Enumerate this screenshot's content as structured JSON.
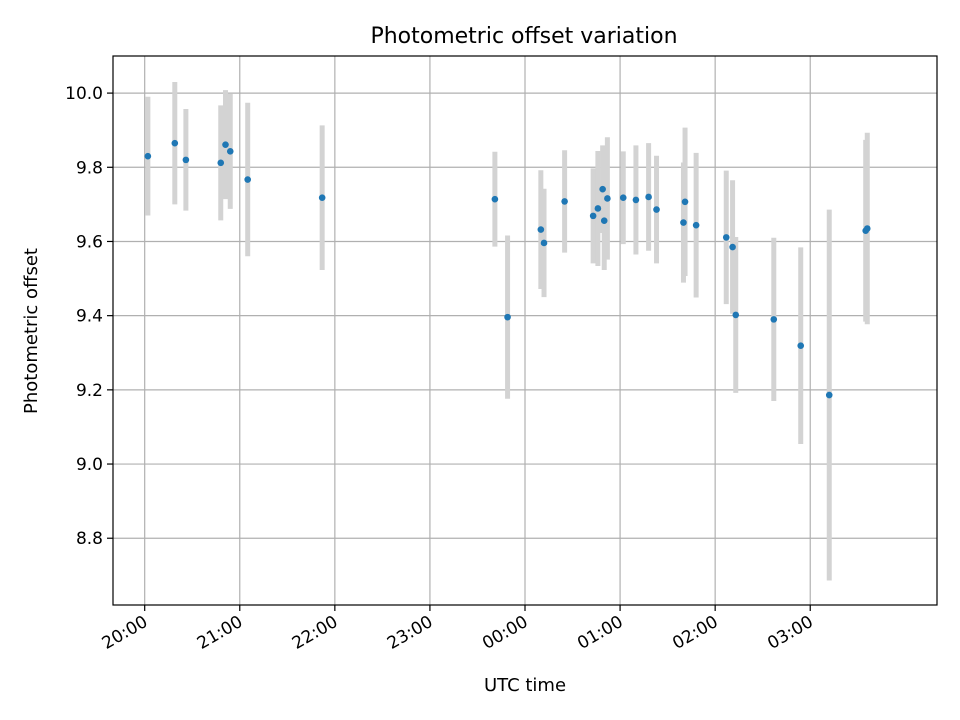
{
  "colors": {
    "point": "#1f77b4",
    "errorbar": "#d3d3d3",
    "grid": "#b0b0b0"
  },
  "chart_data": {
    "type": "scatter",
    "title": "Photometric offset variation",
    "xlabel": "UTC time",
    "ylabel": "Photometric offset",
    "x_axis_type": "time",
    "xlim": [
      "19:40",
      "28:20"
    ],
    "ylim": [
      8.62,
      10.1
    ],
    "grid": true,
    "x_ticks": [
      "20:00",
      "21:00",
      "22:00",
      "23:00",
      "00:00",
      "01:00",
      "02:00",
      "03:00"
    ],
    "y_ticks": [
      "8.8",
      "9.0",
      "9.2",
      "9.4",
      "9.6",
      "9.8",
      "10.0"
    ],
    "series": [
      {
        "style": "errorbar",
        "points": [
          {
            "t": "20:02",
            "y": 9.83,
            "err": 0.16
          },
          {
            "t": "20:19",
            "y": 9.865,
            "err": 0.165
          },
          {
            "t": "20:26",
            "y": 9.82,
            "err": 0.137
          },
          {
            "t": "20:48",
            "y": 9.812,
            "err": 0.155
          },
          {
            "t": "20:51",
            "y": 9.861,
            "err": 0.147
          },
          {
            "t": "20:54",
            "y": 9.843,
            "err": 0.155
          },
          {
            "t": "21:05",
            "y": 9.767,
            "err": 0.207
          },
          {
            "t": "21:52",
            "y": 9.718,
            "err": 0.195
          },
          {
            "t": "23:41",
            "y": 9.714,
            "err": 0.128
          },
          {
            "t": "23:49",
            "y": 9.396,
            "err": 0.22
          },
          {
            "t": "00:10",
            "y": 9.632,
            "err": 0.16
          },
          {
            "t": "00:12",
            "y": 9.596,
            "err": 0.146
          },
          {
            "t": "00:25",
            "y": 9.708,
            "err": 0.138
          },
          {
            "t": "00:43",
            "y": 9.669,
            "err": 0.128
          },
          {
            "t": "00:46",
            "y": 9.689,
            "err": 0.155
          },
          {
            "t": "00:49",
            "y": 9.741,
            "err": 0.118
          },
          {
            "t": "00:50",
            "y": 9.656,
            "err": 0.133
          },
          {
            "t": "00:52",
            "y": 9.716,
            "err": 0.165
          },
          {
            "t": "01:02",
            "y": 9.718,
            "err": 0.125
          },
          {
            "t": "01:10",
            "y": 9.712,
            "err": 0.147
          },
          {
            "t": "01:18",
            "y": 9.72,
            "err": 0.145
          },
          {
            "t": "01:23",
            "y": 9.686,
            "err": 0.145
          },
          {
            "t": "01:40",
            "y": 9.651,
            "err": 0.162
          },
          {
            "t": "01:41",
            "y": 9.707,
            "err": 0.2
          },
          {
            "t": "01:48",
            "y": 9.644,
            "err": 0.195
          },
          {
            "t": "02:07",
            "y": 9.611,
            "err": 0.18
          },
          {
            "t": "02:11",
            "y": 9.585,
            "err": 0.18
          },
          {
            "t": "02:13",
            "y": 9.402,
            "err": 0.21
          },
          {
            "t": "02:37",
            "y": 9.39,
            "err": 0.22
          },
          {
            "t": "02:54",
            "y": 9.319,
            "err": 0.265
          },
          {
            "t": "03:12",
            "y": 9.186,
            "err": 0.5
          },
          {
            "t": "03:35",
            "y": 9.629,
            "err": 0.245
          },
          {
            "t": "03:36",
            "y": 9.635,
            "err": 0.258
          }
        ]
      }
    ]
  }
}
